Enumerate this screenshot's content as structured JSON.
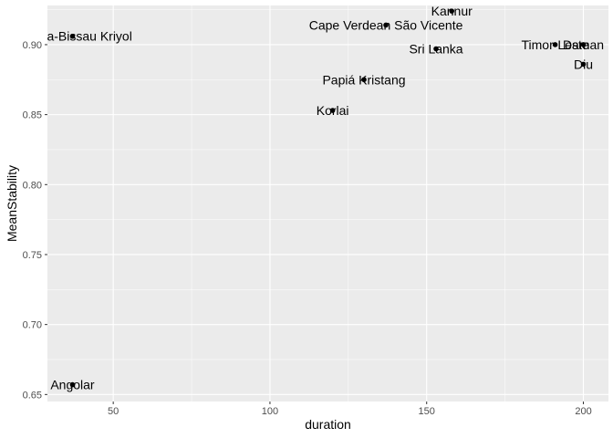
{
  "chart_data": {
    "type": "scatter",
    "xlabel": "duration",
    "ylabel": "MeanStability",
    "xlim": [
      29,
      208
    ],
    "ylim": [
      0.645,
      0.928
    ],
    "x_ticks": [
      50,
      100,
      150,
      200
    ],
    "y_ticks": [
      0.65,
      0.7,
      0.75,
      0.8,
      0.85,
      0.9
    ],
    "y_tick_labels": [
      "0.65",
      "0.70",
      "0.75",
      "0.80",
      "0.85",
      "0.90"
    ],
    "grid": true,
    "colors": {
      "panel": "#ebebeb",
      "grid_major": "#ffffff",
      "point": "#000000"
    },
    "points": [
      {
        "label": "Guinea-Bissau Kriyol",
        "x": 37,
        "y": 0.906
      },
      {
        "label": "Angolar",
        "x": 37,
        "y": 0.657
      },
      {
        "label": "Kannur",
        "x": 158,
        "y": 0.924
      },
      {
        "label": "Cape Verdean São Vicente",
        "x": 137,
        "y": 0.914
      },
      {
        "label": "Sri Lanka",
        "x": 153,
        "y": 0.897
      },
      {
        "label": "Timor-Leste",
        "x": 191,
        "y": 0.9
      },
      {
        "label": "Daman",
        "x": 200,
        "y": 0.9
      },
      {
        "label": "Diu",
        "x": 200,
        "y": 0.886
      },
      {
        "label": "Papiá Kristang",
        "x": 130,
        "y": 0.875
      },
      {
        "label": "Korlai",
        "x": 120,
        "y": 0.853
      }
    ]
  }
}
